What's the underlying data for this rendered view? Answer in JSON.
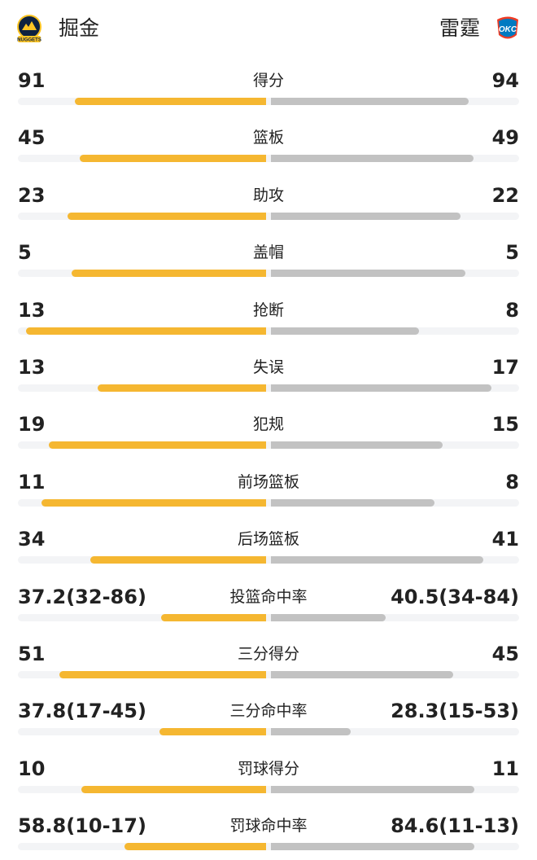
{
  "teams": {
    "home": {
      "name": "掘金",
      "logo_text": "NUGGETS",
      "accent": "#f5b731"
    },
    "away": {
      "name": "雷霆",
      "logo_text": "OKC",
      "accent": "#c2c2c2"
    }
  },
  "stats": [
    {
      "label": "得分",
      "home": "91",
      "away": "94",
      "home_share": 0.4919,
      "away_share": 0.5081
    },
    {
      "label": "篮板",
      "home": "45",
      "away": "49",
      "home_share": 0.4787,
      "away_share": 0.5213
    },
    {
      "label": "助攻",
      "home": "23",
      "away": "22",
      "home_share": 0.5111,
      "away_share": 0.4889
    },
    {
      "label": "盖帽",
      "home": "5",
      "away": "5",
      "home_share": 0.5,
      "away_share": 0.5
    },
    {
      "label": "抢断",
      "home": "13",
      "away": "8",
      "home_share": 0.619,
      "away_share": 0.381
    },
    {
      "label": "失误",
      "home": "13",
      "away": "17",
      "home_share": 0.4333,
      "away_share": 0.5667
    },
    {
      "label": "犯规",
      "home": "19",
      "away": "15",
      "home_share": 0.5588,
      "away_share": 0.4412
    },
    {
      "label": "前场篮板",
      "home": "11",
      "away": "8",
      "home_share": 0.5789,
      "away_share": 0.4211
    },
    {
      "label": "后场篮板",
      "home": "34",
      "away": "41",
      "home_share": 0.4533,
      "away_share": 0.5467
    },
    {
      "label": "投篮命中率",
      "home": "37.2(32-86)",
      "away": "40.5(34-84)",
      "home_share": 0.2705,
      "away_share": 0.2945
    },
    {
      "label": "三分得分",
      "home": "51",
      "away": "45",
      "home_share": 0.5312,
      "away_share": 0.4688
    },
    {
      "label": "三分命中率",
      "home": "37.8(17-45)",
      "away": "28.3(15-53)",
      "home_share": 0.2749,
      "away_share": 0.2058
    },
    {
      "label": "罚球得分",
      "home": "10",
      "away": "11",
      "home_share": 0.4762,
      "away_share": 0.5238
    },
    {
      "label": "罚球命中率",
      "home": "58.8(10-17)",
      "away": "84.6(11-13)",
      "home_share": 0.3637,
      "away_share": 0.5233
    }
  ]
}
